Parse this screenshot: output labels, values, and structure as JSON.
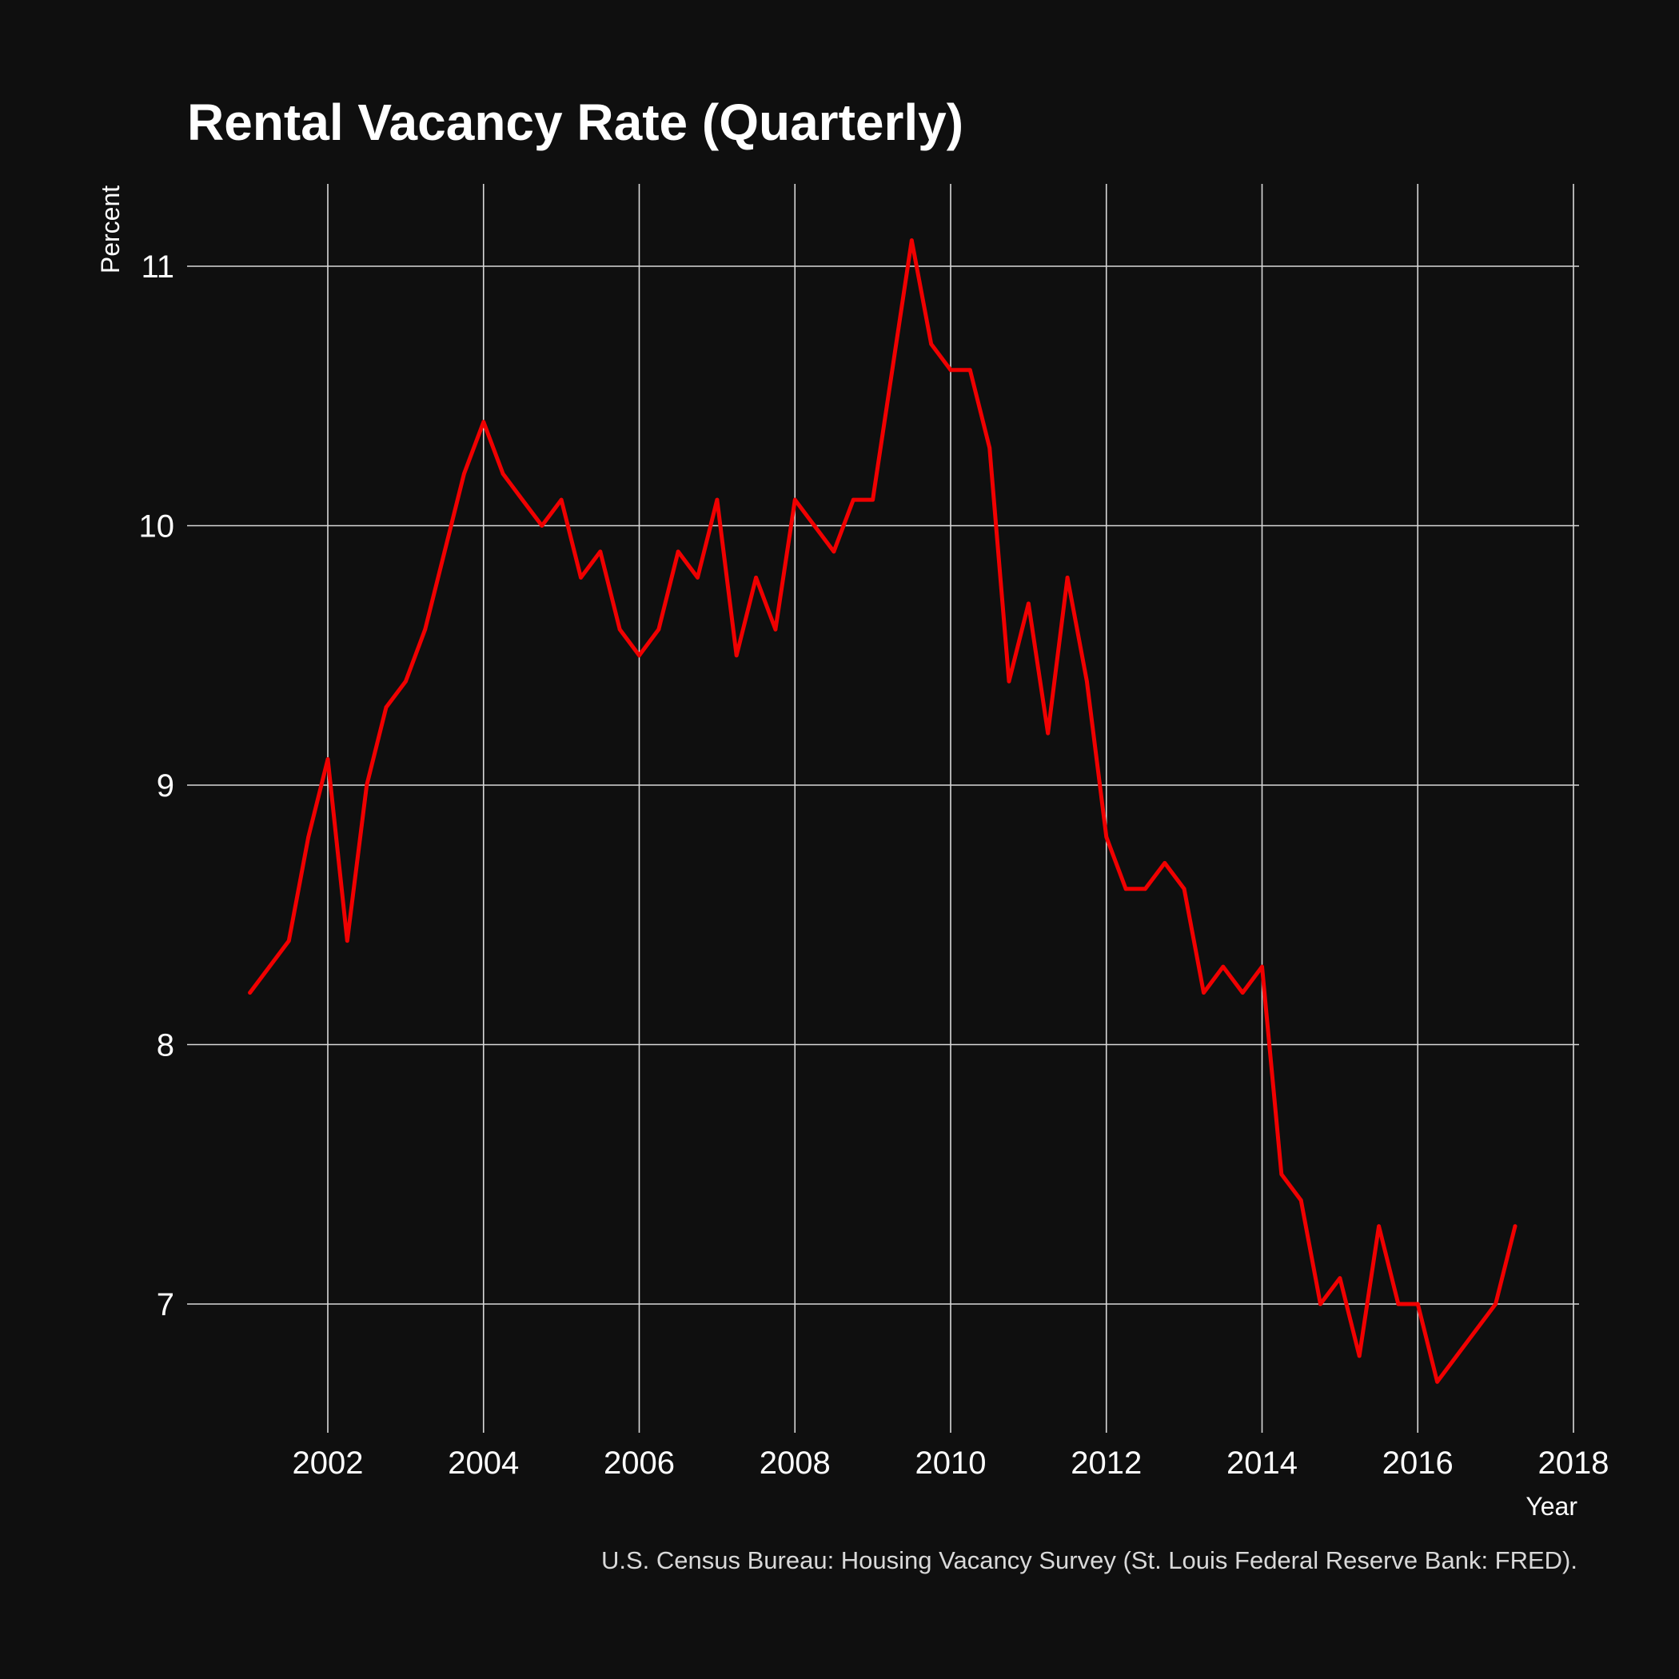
{
  "chart_data": {
    "type": "line",
    "title": "Rental Vacancy Rate (Quarterly)",
    "xlabel": "Year",
    "ylabel": "Percent",
    "caption": "U.S. Census Bureau: Housing Vacancy Survey (St. Louis Federal Reserve Bank: FRED).",
    "xlim": [
      2000.8,
      2018
    ],
    "ylim": [
      6.5,
      11.3
    ],
    "x_ticks": [
      2002,
      2004,
      2006,
      2008,
      2010,
      2012,
      2014,
      2016,
      2018
    ],
    "y_ticks": [
      7,
      8,
      9,
      10,
      11
    ],
    "grid": true,
    "legend": "none",
    "colors": {
      "background": "#0f0f0f",
      "grid": "#d8d8d8",
      "line": "#f00000",
      "text": "#ffffff"
    },
    "series": [
      {
        "x": [
          2001.0,
          2001.25,
          2001.5,
          2001.75,
          2002.0,
          2002.25,
          2002.5,
          2002.75,
          2003.0,
          2003.25,
          2003.5,
          2003.75,
          2004.0,
          2004.25,
          2004.5,
          2004.75,
          2005.0,
          2005.25,
          2005.5,
          2005.75,
          2006.0,
          2006.25,
          2006.5,
          2006.75,
          2007.0,
          2007.25,
          2007.5,
          2007.75,
          2008.0,
          2008.25,
          2008.5,
          2008.75,
          2009.0,
          2009.25,
          2009.5,
          2009.75,
          2010.0,
          2010.25,
          2010.5,
          2010.75,
          2011.0,
          2011.25,
          2011.5,
          2011.75,
          2012.0,
          2012.25,
          2012.5,
          2012.75,
          2013.0,
          2013.25,
          2013.5,
          2013.75,
          2014.0,
          2014.25,
          2014.5,
          2014.75,
          2015.0,
          2015.25,
          2015.5,
          2015.75,
          2016.0,
          2016.25,
          2016.5,
          2016.75,
          2017.0,
          2017.25
        ],
        "values": [
          8.2,
          8.3,
          8.4,
          8.8,
          9.1,
          8.4,
          9.0,
          9.3,
          9.4,
          9.6,
          9.9,
          10.2,
          10.4,
          10.2,
          10.1,
          10.0,
          10.1,
          9.8,
          9.9,
          9.6,
          9.5,
          9.6,
          9.9,
          9.8,
          10.1,
          9.5,
          9.8,
          9.6,
          10.1,
          10.0,
          9.9,
          10.1,
          10.1,
          10.6,
          11.1,
          10.7,
          10.6,
          10.6,
          10.3,
          9.4,
          9.7,
          9.2,
          9.8,
          9.4,
          8.8,
          8.6,
          8.6,
          8.7,
          8.6,
          8.2,
          8.3,
          8.2,
          8.3,
          7.5,
          7.4,
          7.0,
          7.1,
          6.8,
          7.3,
          7.0,
          7.0,
          6.7,
          6.8,
          6.9,
          7.0,
          7.3
        ]
      }
    ]
  }
}
